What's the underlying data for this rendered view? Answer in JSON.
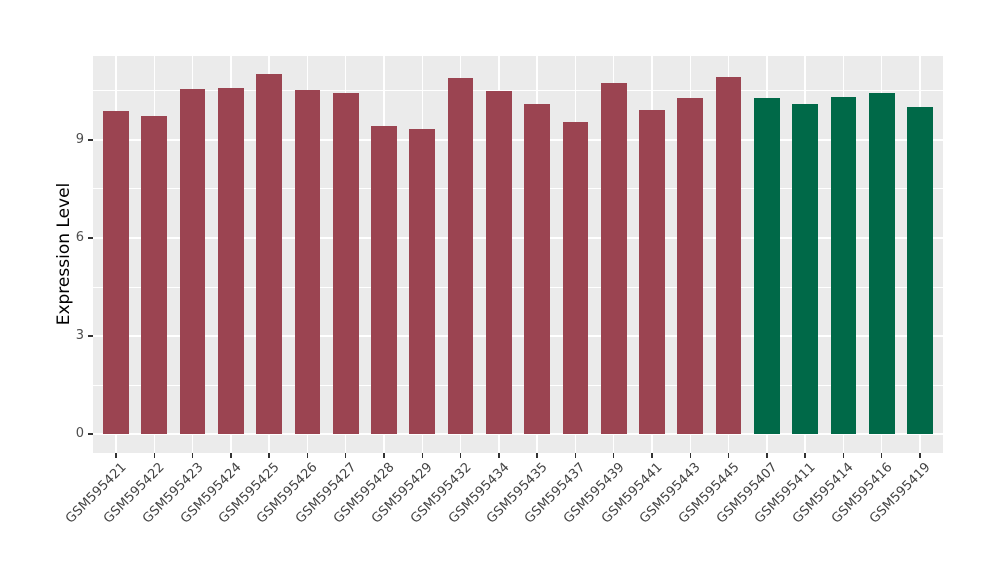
{
  "chart_data": {
    "type": "bar",
    "title": "",
    "xlabel": "",
    "ylabel": "Expression Level",
    "categories": [
      "GSM595421",
      "GSM595422",
      "GSM595423",
      "GSM595424",
      "GSM595425",
      "GSM595426",
      "GSM595427",
      "GSM595428",
      "GSM595429",
      "GSM595432",
      "GSM595434",
      "GSM595435",
      "GSM595437",
      "GSM595439",
      "GSM595441",
      "GSM595443",
      "GSM595445",
      "GSM595407",
      "GSM595411",
      "GSM595414",
      "GSM595416",
      "GSM595419"
    ],
    "values": [
      9.89,
      9.73,
      10.55,
      10.58,
      11.01,
      10.54,
      10.45,
      9.43,
      9.34,
      10.89,
      10.5,
      10.09,
      9.56,
      10.75,
      9.92,
      10.28,
      10.93,
      10.28,
      10.11,
      10.32,
      10.43,
      10.01
    ],
    "bar_colors": [
      "#9B4451",
      "#9B4451",
      "#9B4451",
      "#9B4451",
      "#9B4451",
      "#9B4451",
      "#9B4451",
      "#9B4451",
      "#9B4451",
      "#9B4451",
      "#9B4451",
      "#9B4451",
      "#9B4451",
      "#9B4451",
      "#9B4451",
      "#9B4451",
      "#9B4451",
      "#006948",
      "#006948",
      "#006948",
      "#006948",
      "#006948"
    ],
    "color_legend": {
      "maroon": "#9B4451",
      "green": "#006948"
    },
    "y_major_ticks": [
      0,
      3,
      6,
      9
    ],
    "y_minor_ticks": [
      1.5,
      4.5,
      7.5,
      10.5
    ],
    "y_tick_labels": [
      "0",
      "3",
      "6",
      "9"
    ],
    "ylim": [
      -0.58,
      11.57
    ],
    "grid": "on",
    "legend_position": "none",
    "panel_bg": "#EBEBEB",
    "grid_color": "#FFFFFF"
  }
}
